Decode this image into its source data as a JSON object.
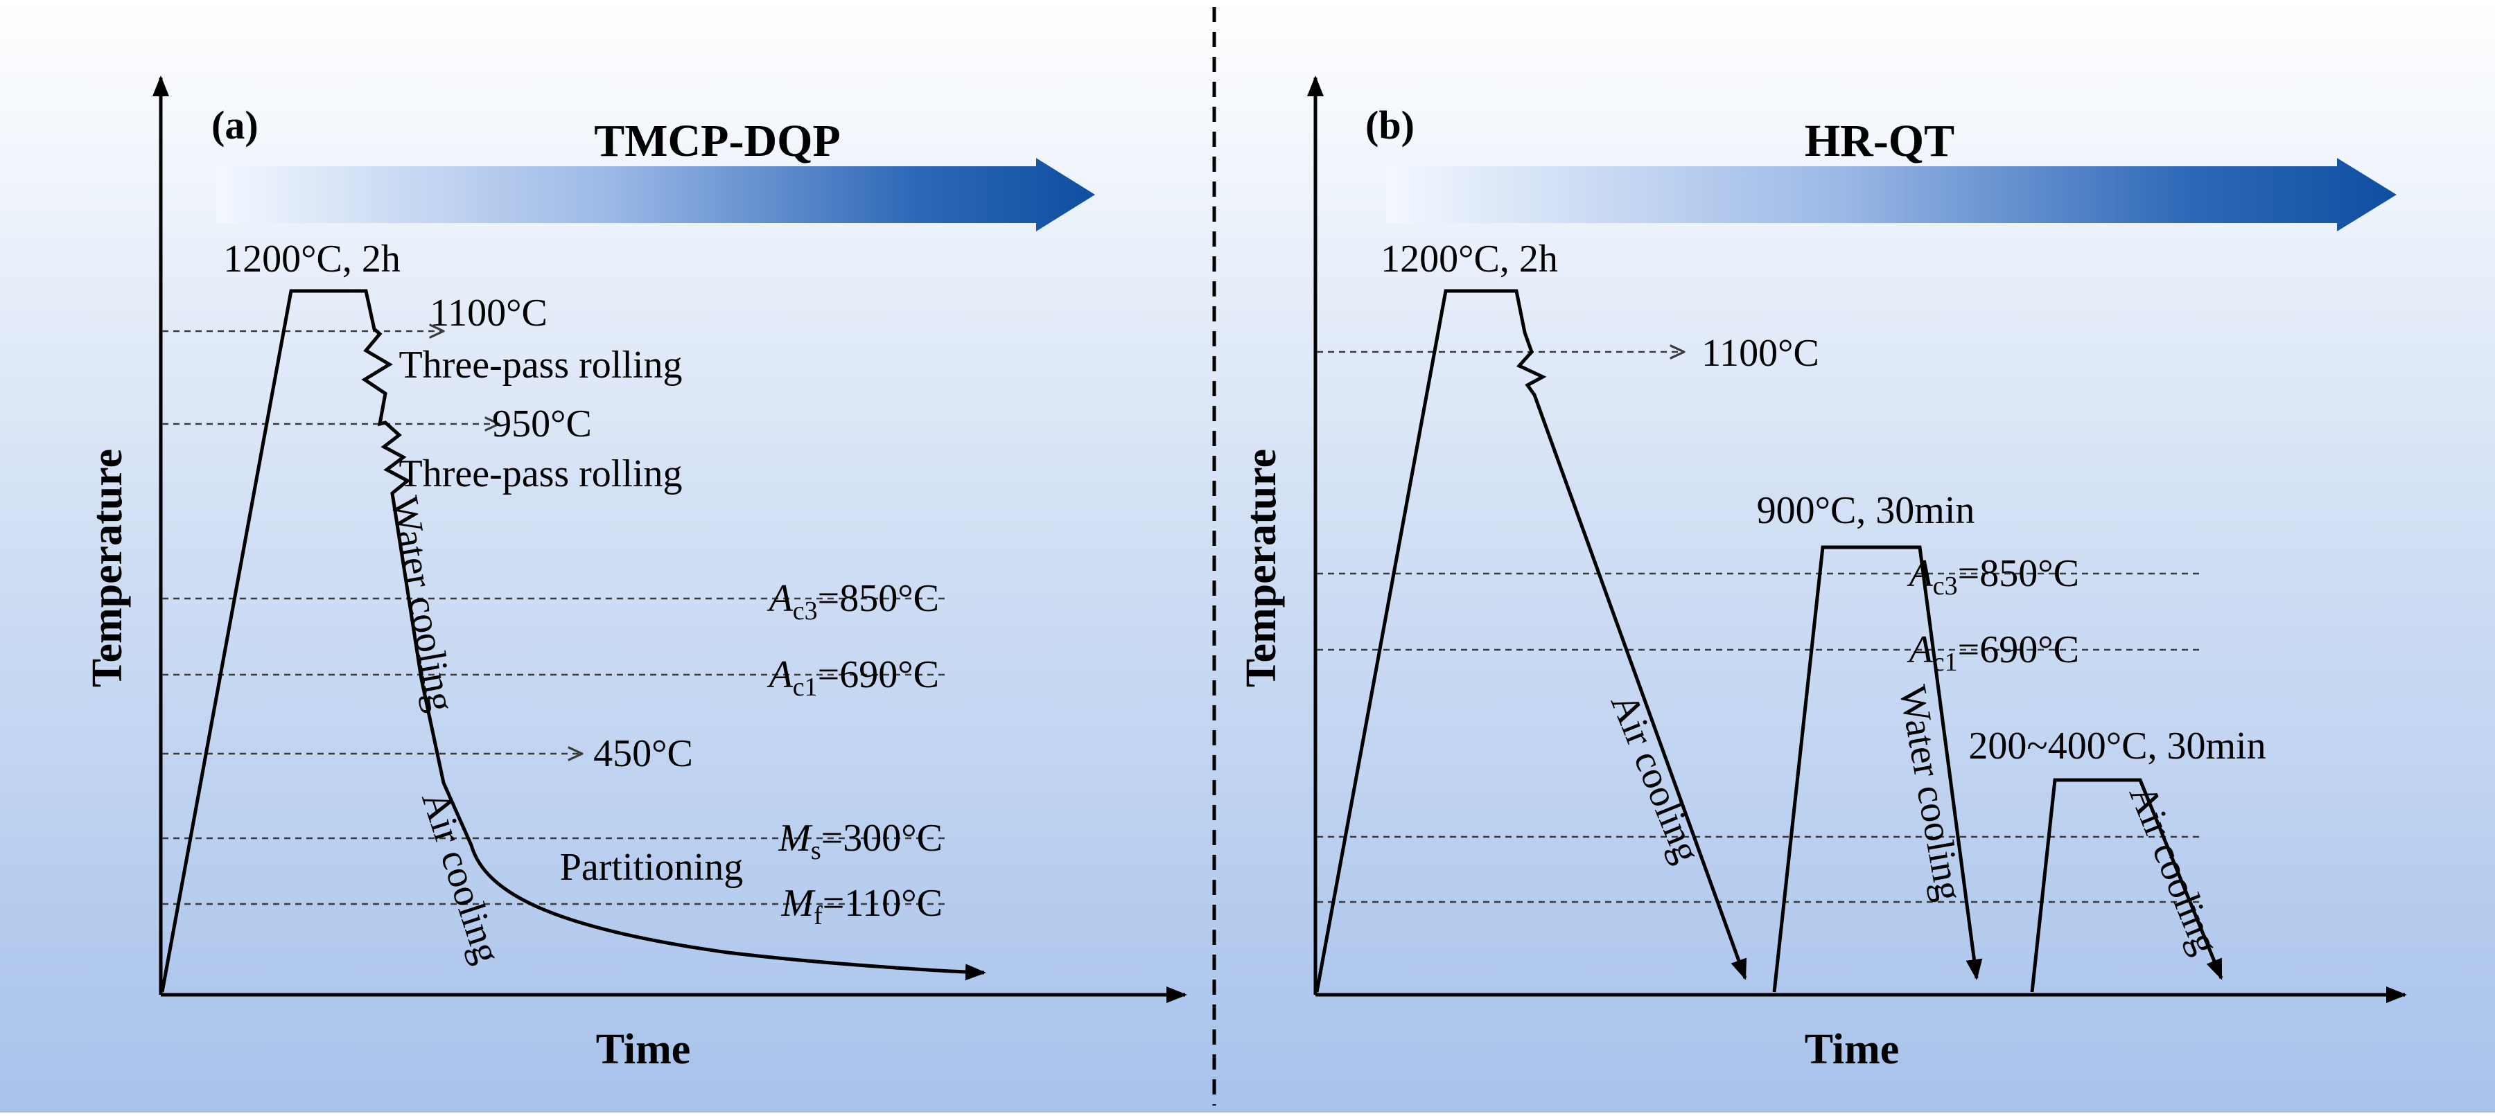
{
  "panel_a": {
    "label": "(a)",
    "title": "TMCP-DQP",
    "x_axis": "Time",
    "y_axis": "Temperature",
    "hold_label": "1200°C, 2h",
    "t1100": "1100°C",
    "rolling1": "Three-pass rolling",
    "t950": "950°C",
    "rolling2": "Three-pass rolling",
    "water_cooling": "Water cooling",
    "ac3_label": "=850°C",
    "ac1_label": "=690°C",
    "t450": "450°C",
    "air_cooling": "Air cooling",
    "partitioning": "Partitioning",
    "ms_label": "=300°C",
    "mf_label": "=110°C"
  },
  "panel_b": {
    "label": "(b)",
    "title": "HR-QT",
    "x_axis": "Time",
    "y_axis": "Temperature",
    "hold_label": "1200°C, 2h",
    "t1100": "1100°C",
    "air_cooling_1": "Air cooling",
    "austenitize_label": "900°C, 30min",
    "ac3_label": "=850°C",
    "ac1_label": "=690°C",
    "water_cooling": "Water cooling",
    "temper_label": "200~400°C, 30min",
    "air_cooling_2": "Air cooling"
  },
  "symbols": {
    "A": "A",
    "M": "M",
    "c3": "c3",
    "c1": "c1",
    "s": "s",
    "f": "f"
  },
  "colors": {
    "background_top": "#ffffff",
    "background_bottom": "#a7c2eb",
    "arrow_light": "#f4f8ff",
    "arrow_dark": "#0f4fa0",
    "line": "#000000"
  }
}
